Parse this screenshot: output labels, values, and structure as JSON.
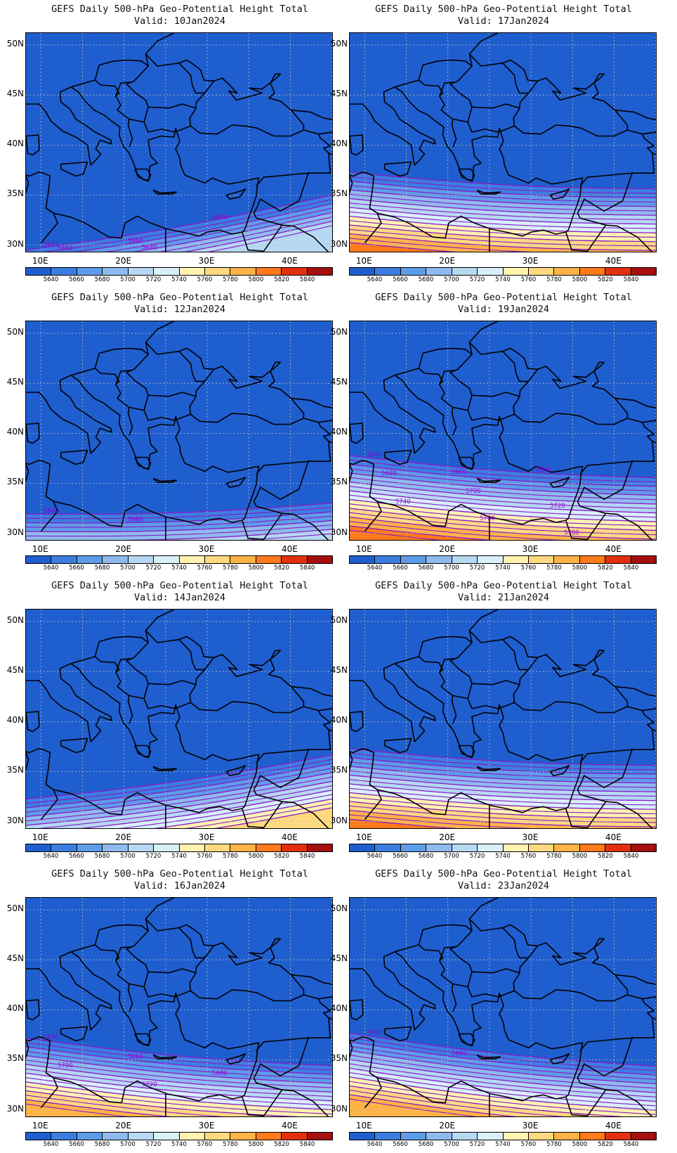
{
  "panels": [
    {
      "line1": "GEFS Daily 500-hPa Geo-Potential Height Total",
      "line2": "Valid:  10Jan2024",
      "south_height_m": 5710,
      "east_tilt": -1.0,
      "contour_labels": [
        "5640",
        "5660",
        "5640",
        "5660",
        "5680"
      ]
    },
    {
      "line1": "GEFS Daily 500-hPa Geo-Potential Height Total",
      "line2": "Valid:  17Jan2024",
      "south_height_m": 5805,
      "east_tilt": 0.3,
      "contour_labels": []
    },
    {
      "line1": "GEFS Daily 500-hPa Geo-Potential Height Total",
      "line2": "Valid:  12Jan2024",
      "south_height_m": 5715,
      "east_tilt": -0.2,
      "contour_labels": [
        "5640",
        "5660"
      ]
    },
    {
      "line1": "GEFS Daily 500-hPa Geo-Potential Height Total",
      "line2": "Valid:  19Jan2024",
      "south_height_m": 5810,
      "east_tilt": 0.4,
      "contour_labels": [
        "5640",
        "5660",
        "5640",
        "5680",
        "5700",
        "5720",
        "5740",
        "5760",
        "5780"
      ]
    },
    {
      "line1": "GEFS Daily 500-hPa Geo-Potential Height Total",
      "line2": "Valid:  14Jan2024",
      "south_height_m": 5760,
      "east_tilt": -0.8,
      "contour_labels": []
    },
    {
      "line1": "GEFS Daily 500-hPa Geo-Potential Height Total",
      "line2": "Valid:  21Jan2024",
      "south_height_m": 5805,
      "east_tilt": 0.3,
      "contour_labels": []
    },
    {
      "line1": "GEFS Daily 500-hPa Geo-Potential Height Total",
      "line2": "Valid:  16Jan2024",
      "south_height_m": 5790,
      "east_tilt": 0.5,
      "contour_labels": [
        "5640",
        "5660",
        "5680",
        "5700",
        "5720"
      ]
    },
    {
      "line1": "GEFS Daily 500-hPa Geo-Potential Height Total",
      "line2": "Valid:  23Jan2024",
      "south_height_m": 5795,
      "east_tilt": 0.6,
      "contour_labels": [
        "5640",
        "5660"
      ]
    }
  ],
  "lat_labels": [
    "50N",
    "45N",
    "40N",
    "35N",
    "30N"
  ],
  "lon_labels": [
    "10E",
    "20E",
    "30E",
    "40E"
  ],
  "colorbar": {
    "labels": [
      "5640",
      "5660",
      "5680",
      "5700",
      "5720",
      "5740",
      "5760",
      "5780",
      "5800",
      "5820",
      "5840"
    ],
    "colors": [
      "#1f5ecf",
      "#3c7ee0",
      "#5e9ce8",
      "#8ebbee",
      "#b6d8f3",
      "#d9f0fa",
      "#fff3b0",
      "#ffd980",
      "#ffb347",
      "#ff7a1a",
      "#e2300e",
      "#a50f0f"
    ]
  },
  "colors": {
    "contour": "#8a18c9",
    "border": "#000000",
    "grid": "#bcbcbc",
    "contour_label": "#9400d3"
  }
}
